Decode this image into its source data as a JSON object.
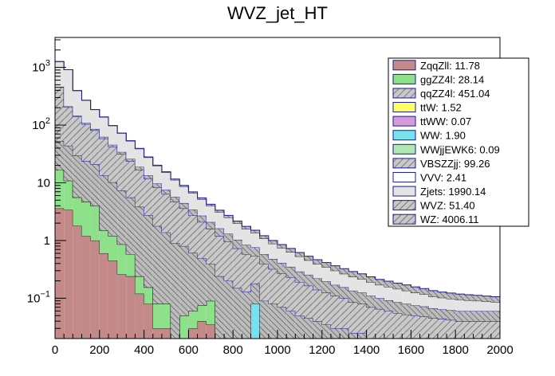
{
  "chart_data": {
    "type": "histogram-stacked",
    "title": "WVZ_jet_HT",
    "xlim": [
      0,
      2000
    ],
    "ylim": [
      0.02,
      3300
    ],
    "yscale": "log",
    "bin_width": 40,
    "x_ticks": [
      "0",
      "200",
      "400",
      "600",
      "800",
      "1000",
      "1200",
      "1400",
      "1600",
      "1800",
      "2000"
    ],
    "y_ticks": [
      {
        "value": 0.1,
        "base": "10",
        "exp": "−1"
      },
      {
        "value": 1,
        "label": "1"
      },
      {
        "value": 10,
        "label": "10"
      },
      {
        "value": 100,
        "base": "10",
        "exp": "2"
      },
      {
        "value": 1000,
        "base": "10",
        "exp": "3"
      }
    ],
    "legend": [
      {
        "label": "ZqqZll: 11.78",
        "color": "#c48a8a",
        "hatch": false
      },
      {
        "label": "ggZZ4l: 28.14",
        "color": "#8ee08a",
        "hatch": false
      },
      {
        "label": "qqZZ4l: 451.04",
        "color": "#b4b4b4",
        "hatch": true
      },
      {
        "label": "ttW: 1.52",
        "color": "#ffff66",
        "hatch": false
      },
      {
        "label": "ttWW: 0.07",
        "color": "#d899d8",
        "hatch": false
      },
      {
        "label": "WW: 1.90",
        "color": "#77e2ee",
        "hatch": false
      },
      {
        "label": "WWjjEWK6: 0.09",
        "color": "#b0e6b0",
        "hatch": false
      },
      {
        "label": "VBSZZjj: 99.26",
        "color": "#b4b4b4",
        "hatch": true
      },
      {
        "label": "VVV: 2.41",
        "color": "#ffffff",
        "hatch": false
      },
      {
        "label": "Zjets: 1990.14",
        "color": "#e4e4e4",
        "hatch": false
      },
      {
        "label": "WVZ: 51.40",
        "color": "#b4b4b4",
        "hatch": true
      },
      {
        "label": "WZ: 4006.11",
        "color": "#c4c4c4",
        "hatch": true
      }
    ],
    "series": [
      {
        "name": "ZqqZll",
        "color": "#c48a8a",
        "line": "#222222",
        "hatch": false,
        "values": [
          3.6,
          3.4,
          1.8,
          1.2,
          1.0,
          0.6,
          0.45,
          0.26,
          0.24,
          0.12,
          0.08,
          0.03,
          0.03,
          0,
          0,
          0.03,
          0.04,
          0.035,
          0,
          0,
          0,
          0,
          0,
          0,
          0,
          0,
          0,
          0,
          0,
          0,
          0,
          0,
          0,
          0,
          0,
          0,
          0,
          0,
          0,
          0,
          0,
          0,
          0,
          0,
          0,
          0,
          0,
          0,
          0,
          0
        ]
      },
      {
        "name": "ggZZ4l",
        "color": "#8ee08a",
        "line": "#222222",
        "hatch": false,
        "values": [
          13,
          7.5,
          3.8,
          3.5,
          3.0,
          0.9,
          0.75,
          0.6,
          0.34,
          0.12,
          0.075,
          0.05,
          0.05,
          0,
          0.05,
          0.03,
          0.035,
          0.055,
          0,
          0,
          0,
          0,
          0,
          0,
          0,
          0,
          0,
          0,
          0,
          0,
          0,
          0,
          0,
          0,
          0,
          0,
          0,
          0,
          0,
          0,
          0,
          0,
          0,
          0,
          0,
          0,
          0,
          0,
          0,
          0
        ]
      },
      {
        "name": "WW",
        "color": "#77e2ee",
        "line": "#222222",
        "hatch": false,
        "values": [
          0,
          0,
          0,
          0,
          0,
          0,
          0,
          0,
          0,
          0,
          0,
          0,
          0,
          0,
          0,
          0,
          0,
          0,
          0,
          0,
          0,
          0,
          0.08,
          0,
          0,
          0,
          0,
          0,
          0,
          0,
          0,
          0,
          0,
          0,
          0,
          0,
          0,
          0,
          0,
          0,
          0,
          0,
          0,
          0,
          0,
          0,
          0,
          0,
          0,
          0
        ]
      },
      {
        "name": "qqZZ4l",
        "color": "#b4b4b4",
        "line": "#1a1a9a",
        "hatch": true,
        "values": [
          36,
          33,
          24,
          19,
          17,
          12,
          9,
          6.5,
          5,
          3.6,
          2.6,
          1.7,
          1.3,
          0.9,
          0.75,
          0.55,
          0.42,
          0.3,
          0.24,
          0.2,
          0.15,
          0.13,
          0.1,
          0.09,
          0.08,
          0.07,
          0.06,
          0.05,
          0.045,
          0.04,
          0.035,
          0.03,
          0.03,
          0.025,
          0.025,
          0.02,
          0.02,
          0.02,
          0.02,
          0.02,
          0.02,
          0.02,
          0.02,
          0.02,
          0.02,
          0.02,
          0.02,
          0.02,
          0.02,
          0.02
        ]
      },
      {
        "name": "WZ",
        "color": "#c4c4c4",
        "line": "#1a1a9a",
        "hatch": true,
        "values": [
          400,
          160,
          110,
          80,
          60,
          45,
          32,
          24,
          18,
          13,
          9,
          6.5,
          5,
          3.8,
          2.8,
          2.1,
          1.6,
          1.2,
          0.95,
          0.75,
          0.58,
          0.45,
          0.36,
          0.3,
          0.24,
          0.2,
          0.17,
          0.14,
          0.12,
          0.1,
          0.09,
          0.08,
          0.07,
          0.06,
          0.055,
          0.05,
          0.045,
          0.04,
          0.035,
          0.032,
          0.03,
          0.028,
          0.025,
          0.024,
          0.022,
          0.02,
          0.02,
          0.02,
          0.02,
          0.02
        ]
      },
      {
        "name": "VBSZZjj",
        "color": "#b4b4b4",
        "line": "#1a1a9a",
        "hatch": true,
        "values": [
          8,
          7,
          6,
          5,
          4.5,
          4,
          3.3,
          2.8,
          2.3,
          2,
          1.7,
          1.4,
          1.2,
          1.0,
          0.85,
          0.72,
          0.6,
          0.5,
          0.43,
          0.36,
          0.3,
          0.26,
          0.22,
          0.19,
          0.16,
          0.14,
          0.12,
          0.1,
          0.09,
          0.08,
          0.07,
          0.06,
          0.055,
          0.05,
          0.045,
          0.04,
          0.035,
          0.032,
          0.03,
          0.028,
          0.025,
          0.024,
          0.022,
          0.02,
          0.02,
          0.02,
          0.02,
          0.02,
          0.02,
          0.02
        ]
      },
      {
        "name": "Zjets",
        "color": "#e4e4e4",
        "line": "#222222",
        "hatch": false,
        "values": [
          800,
          700,
          250,
          160,
          100,
          75,
          52,
          38,
          27,
          20,
          14,
          10,
          7.5,
          5.5,
          4.2,
          3.2,
          2.5,
          1.9,
          1.5,
          1.2,
          0.95,
          0.75,
          0.6,
          0.5,
          0.4,
          0.33,
          0.28,
          0.24,
          0.2,
          0.17,
          0.15,
          0.13,
          0.11,
          0.1,
          0.09,
          0.08,
          0.07,
          0.065,
          0.06,
          0.055,
          0.05,
          0.045,
          0.04,
          0.038,
          0.036,
          0.034,
          0.032,
          0.03,
          0.028,
          0.026
        ]
      },
      {
        "name": "WVZ",
        "color": "#b4b4b4",
        "line": "#1a1a9a",
        "hatch": true,
        "values": [
          0.5,
          0.6,
          0.7,
          0.8,
          0.8,
          0.8,
          0.75,
          0.7,
          0.65,
          0.6,
          0.55,
          0.5,
          0.45,
          0.4,
          0.36,
          0.32,
          0.29,
          0.26,
          0.23,
          0.21,
          0.19,
          0.17,
          0.15,
          0.13,
          0.12,
          0.11,
          0.1,
          0.09,
          0.08,
          0.075,
          0.07,
          0.065,
          0.06,
          0.055,
          0.05,
          0.045,
          0.042,
          0.04,
          0.038,
          0.035,
          0.032,
          0.03,
          0.028,
          0.026,
          0.025,
          0.024,
          0.023,
          0.022,
          0.021,
          0.02
        ]
      }
    ]
  }
}
